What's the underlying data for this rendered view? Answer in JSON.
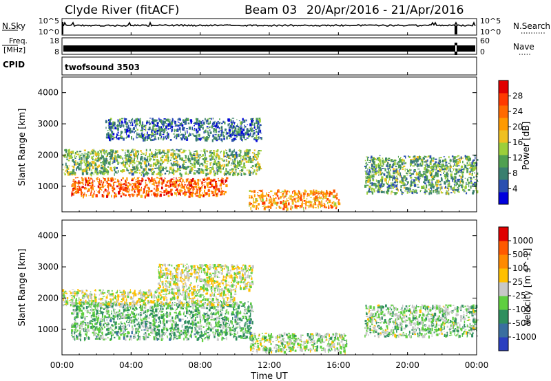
{
  "header": {
    "station": "Clyde River (fitACF)",
    "beam": "Beam 03",
    "date_range": "20/Apr/2016 - 21/Apr/2016"
  },
  "noise_panel": {
    "left_label": "N.Sky",
    "left_ticks": [
      "10^5",
      "10^0"
    ],
    "right_label": "N.Search",
    "right_ticks": [
      "10^5",
      "10^0"
    ]
  },
  "freq_panel": {
    "left_label_1": "Freq.",
    "left_label_2": "[MHz]",
    "left_ticks": [
      "18",
      "8"
    ],
    "right_label": "Nave",
    "right_ticks": [
      "60",
      "0"
    ]
  },
  "cpid": {
    "label": "CPID",
    "program": "twofsound 3503"
  },
  "power_panel": {
    "ylabel": "Slant Range [km]",
    "yticks": [
      "4000",
      "3000",
      "2000",
      "1000"
    ],
    "colorbar_label": "Power [dB]",
    "colorbar_ticks": [
      "28",
      "24",
      "20",
      "16",
      "12",
      "8",
      "4"
    ],
    "colorbar_colors": [
      "#0000dd",
      "#2a4fb0",
      "#3a7f6f",
      "#50a050",
      "#9ccf3a",
      "#f0c020",
      "#ff9a00",
      "#ff6a00",
      "#ff3a00",
      "#e00000"
    ]
  },
  "velocity_panel": {
    "ylabel": "Slant Range [km]",
    "yticks": [
      "4000",
      "3000",
      "2000",
      "1000"
    ],
    "colorbar_label": "Velocity [m s^-1]",
    "colorbar_ticks": [
      "1000",
      "500",
      "100",
      "25",
      "-25",
      "-100",
      "-500",
      "-1000"
    ],
    "colorbar_colors": [
      "#2a3fc0",
      "#3a6fa0",
      "#2f8f5f",
      "#5fcf40",
      "#c8c8c8",
      "#ffc000",
      "#ff8a00",
      "#ff5a00",
      "#e00000"
    ]
  },
  "xaxis": {
    "label": "Time UT",
    "ticks": [
      "00:00",
      "04:00",
      "08:00",
      "12:00",
      "16:00",
      "20:00",
      "00:00"
    ]
  },
  "chart_data": [
    {
      "type": "heatmap",
      "title": "Power",
      "x_range_hours": [
        0,
        24
      ],
      "y_range_km": [
        180,
        4500
      ],
      "colorbar_range": [
        0,
        32
      ],
      "ylabel": "Slant Range [km]",
      "xlabel": "Time UT",
      "echo_regions": [
        {
          "t_start": 0.5,
          "t_end": 9.5,
          "r_low": 700,
          "r_high": 1300,
          "value": 26
        },
        {
          "t_start": 0.0,
          "t_end": 11.5,
          "r_low": 1400,
          "r_high": 2200,
          "value": 12
        },
        {
          "t_start": 10.8,
          "t_end": 16.0,
          "r_low": 300,
          "r_high": 900,
          "value": 22
        },
        {
          "t_start": 17.5,
          "t_end": 24.0,
          "r_low": 800,
          "r_high": 2000,
          "value": 10
        },
        {
          "t_start": 2.5,
          "t_end": 11.5,
          "r_low": 2500,
          "r_high": 3200,
          "value": 6
        }
      ]
    },
    {
      "type": "heatmap",
      "title": "Velocity",
      "x_range_hours": [
        0,
        24
      ],
      "y_range_km": [
        180,
        4500
      ],
      "colorbar_range": [
        -1000,
        1000
      ],
      "ylabel": "Slant Range [km]",
      "xlabel": "Time UT",
      "echo_regions": [
        {
          "t_start": 0.5,
          "t_end": 11.0,
          "r_low": 700,
          "r_high": 1900,
          "value": -300
        },
        {
          "t_start": 0.0,
          "t_end": 10.0,
          "r_low": 1800,
          "r_high": 2300,
          "value": 0
        },
        {
          "t_start": 5.5,
          "t_end": 11.0,
          "r_low": 2300,
          "r_high": 3100,
          "value": 0
        },
        {
          "t_start": 10.8,
          "t_end": 16.5,
          "r_low": 300,
          "r_high": 900,
          "value": -100
        },
        {
          "t_start": 17.5,
          "t_end": 24.0,
          "r_low": 800,
          "r_high": 1800,
          "value": -200
        }
      ]
    }
  ]
}
